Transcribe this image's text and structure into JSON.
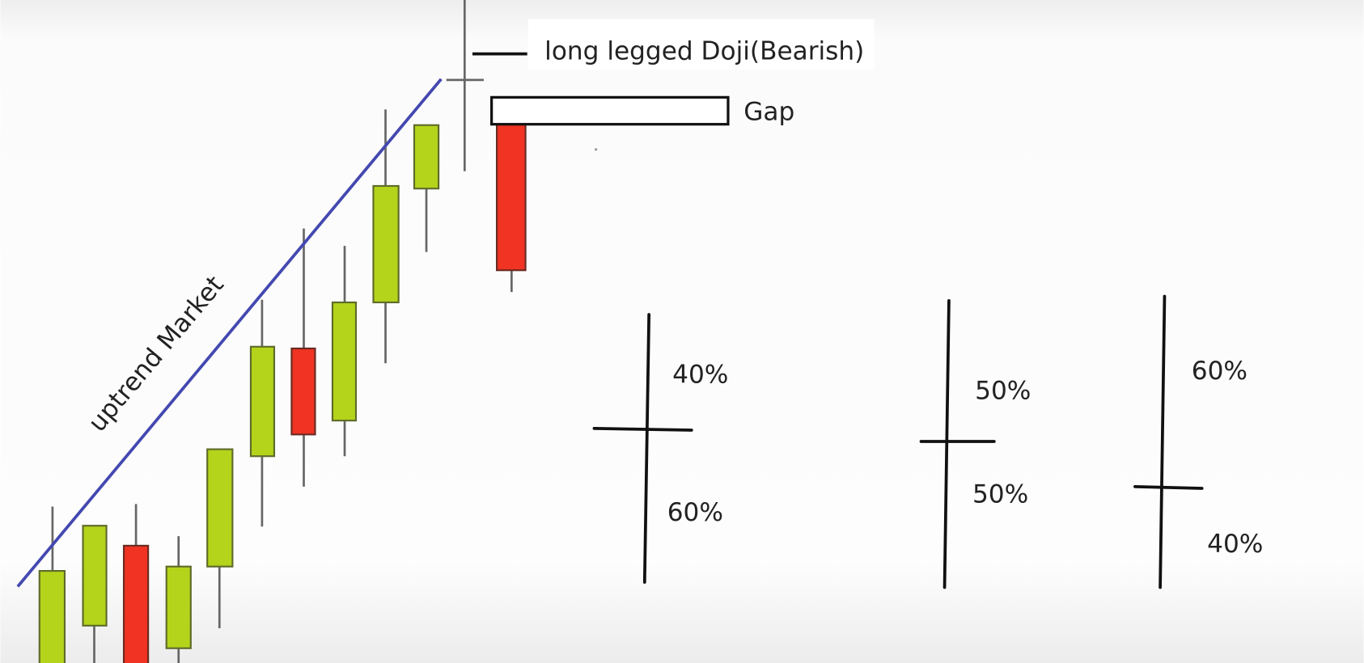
{
  "annotations": {
    "doji_label": "long legged Doji(Bearish)",
    "gap_label": "Gap",
    "trend_label": "uptrend Market"
  },
  "doji_diagrams": [
    {
      "upper": "40%",
      "lower": "60%"
    },
    {
      "upper": "50%",
      "lower": "50%"
    },
    {
      "upper": "60%",
      "lower": "40%"
    }
  ]
}
